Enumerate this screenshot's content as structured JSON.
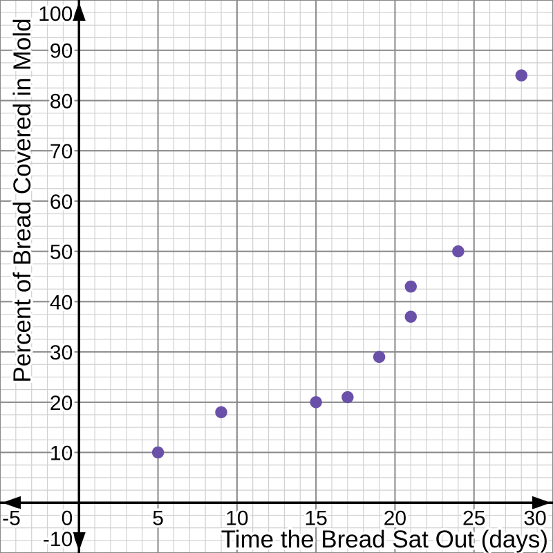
{
  "chart_data": {
    "type": "scatter",
    "title": "",
    "xlabel": "Time the Bread Sat Out (days)",
    "ylabel": "Percent of Bread Covered in Mold",
    "xlim": [
      -5,
      30
    ],
    "ylim": [
      -10,
      100
    ],
    "x_major_step": 5,
    "y_major_step": 10,
    "x_minor_step": 1,
    "y_minor_step": 2.5,
    "x_tick_labels": [
      "-5",
      "0",
      "5",
      "10",
      "15",
      "20",
      "25",
      "30"
    ],
    "x_tick_values": [
      -5,
      0,
      5,
      10,
      15,
      20,
      25,
      30
    ],
    "y_tick_labels": [
      "-10",
      "10",
      "20",
      "30",
      "40",
      "50",
      "60",
      "70",
      "80",
      "90",
      "100"
    ],
    "y_tick_values": [
      -10,
      10,
      20,
      30,
      40,
      50,
      60,
      70,
      80,
      90,
      100
    ],
    "points": [
      {
        "x": 5,
        "y": 10
      },
      {
        "x": 9,
        "y": 18
      },
      {
        "x": 15,
        "y": 20
      },
      {
        "x": 17,
        "y": 21
      },
      {
        "x": 19,
        "y": 29
      },
      {
        "x": 21,
        "y": 37
      },
      {
        "x": 21,
        "y": 43
      },
      {
        "x": 24,
        "y": 50
      },
      {
        "x": 28,
        "y": 85
      }
    ],
    "legend": null,
    "grid": true,
    "point_radius_px": 8.7,
    "colors": {
      "point": "#6a50a8",
      "axis": "#000000",
      "major_grid": "#878787",
      "minor_grid": "#d0d0d0",
      "tick_label": "#000000",
      "background": "#ffffff"
    }
  }
}
